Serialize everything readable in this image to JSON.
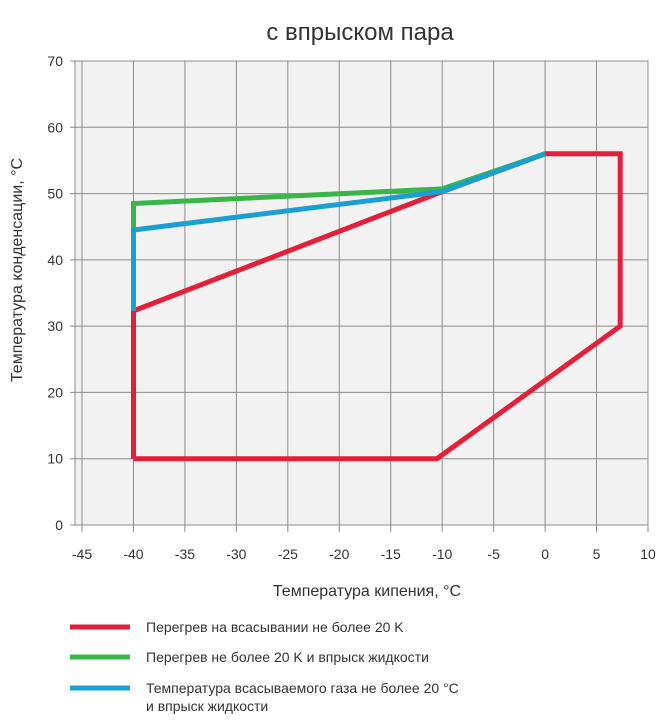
{
  "chart_data": {
    "type": "line",
    "title": "с впрыском пара",
    "xlabel": "Температура кипения, °C",
    "ylabel": "Температура конденсации, °C",
    "xlim": [
      -45,
      10
    ],
    "ylim": [
      0,
      70
    ],
    "x_ticks": [
      -45,
      -40,
      -35,
      -30,
      -25,
      -20,
      -15,
      -10,
      -5,
      0,
      5,
      10
    ],
    "y_ticks": [
      0,
      10,
      20,
      30,
      40,
      50,
      60,
      70
    ],
    "x_tick_labels": [
      "-45",
      "-40",
      "-35",
      "-30",
      "-25",
      "-20",
      "-15",
      "-10",
      "-5",
      "0",
      "5",
      "10"
    ],
    "y_tick_labels": [
      "0",
      "10",
      "20",
      "30",
      "40",
      "50",
      "60",
      "70"
    ],
    "grid": true,
    "legend_position": "bottom",
    "series": [
      {
        "name": "Перегрев на всасывании не более 20 K",
        "color": "#e3203a",
        "points": [
          [
            -40,
            10
          ],
          [
            -10.5,
            10
          ],
          [
            7.3,
            30
          ],
          [
            7.3,
            56
          ],
          [
            0,
            56
          ],
          [
            -10.5,
            50
          ],
          [
            -40,
            32.3
          ],
          [
            -40,
            10
          ]
        ]
      },
      {
        "name": "Перегрев не более 20 K и впрыск жидкости",
        "color": "#3ab54a",
        "points": [
          [
            -40,
            44.5
          ],
          [
            -40,
            48.5
          ],
          [
            -10,
            50.7
          ],
          [
            0,
            56
          ]
        ]
      },
      {
        "name": "Температура всасываемого газа не более 20 °C и впрыск жидкости",
        "name_lines": [
          "Температура всасываемого газа не более 20 °C",
          "и  впрыск жидкости"
        ],
        "color": "#1a9fd1",
        "points": [
          [
            -40,
            32.3
          ],
          [
            -40,
            44.5
          ],
          [
            -10,
            50.3
          ],
          [
            0,
            56
          ]
        ]
      }
    ]
  }
}
